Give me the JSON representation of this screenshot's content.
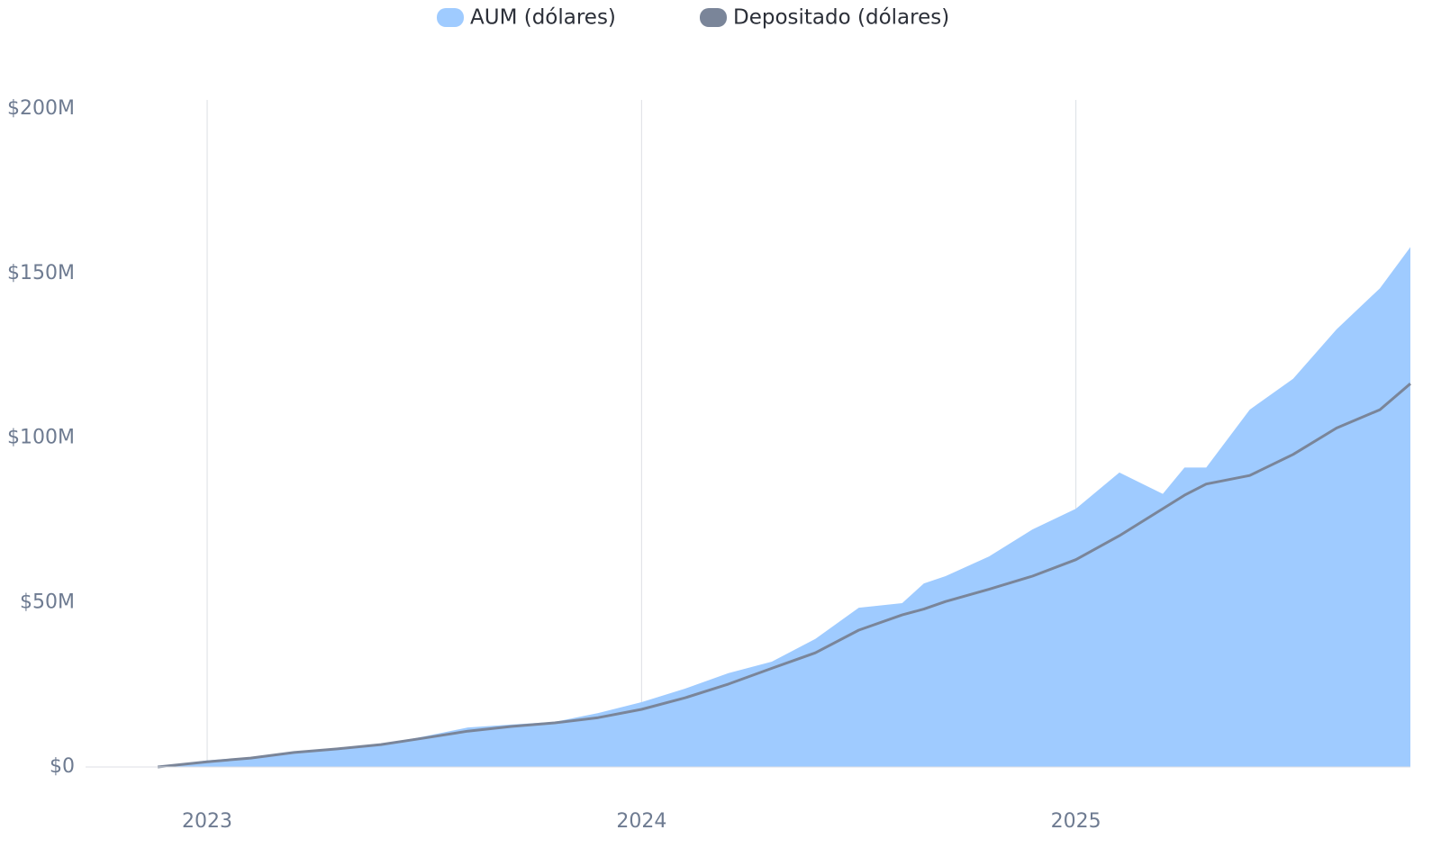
{
  "chart_data": {
    "type": "area",
    "x": [
      2022.886,
      2023.0,
      2023.1,
      2023.2,
      2023.3,
      2023.4,
      2023.5,
      2023.6,
      2023.7,
      2023.8,
      2023.9,
      2024.0,
      2024.1,
      2024.2,
      2024.3,
      2024.4,
      2024.5,
      2024.6,
      2024.65,
      2024.7,
      2024.8,
      2024.9,
      2025.0,
      2025.1,
      2025.2,
      2025.25,
      2025.3,
      2025.4,
      2025.5,
      2025.6,
      2025.7,
      2025.77
    ],
    "series": [
      {
        "name": "AUM (dólares)",
        "color": "#9fcbff",
        "fill": true,
        "values": [
          0,
          2000000,
          3000000,
          4400000,
          5200000,
          6800000,
          9300000,
          12000000,
          12900000,
          13700000,
          16400000,
          19700000,
          23800000,
          28500000,
          32000000,
          38900000,
          48400000,
          49800000,
          55800000,
          58000000,
          64000000,
          72200000,
          78500000,
          89500000,
          83000000,
          91000000,
          91000000,
          108600000,
          118000000,
          133000000,
          145500000,
          158000000
        ]
      },
      {
        "name": "Depositado (dólares)",
        "color": "#7a8599",
        "fill": false,
        "values": [
          0,
          1600000,
          2700000,
          4400000,
          5500000,
          6800000,
          8800000,
          10900000,
          12300000,
          13400000,
          15000000,
          17500000,
          21000000,
          25200000,
          30000000,
          34700000,
          41600000,
          46200000,
          48000000,
          50300000,
          54000000,
          58000000,
          63000000,
          70300000,
          78500000,
          82600000,
          86000000,
          88600000,
          95000000,
          103000000,
          108600000,
          116500000
        ]
      }
    ],
    "xlim": [
      2022.72,
      2025.77
    ],
    "xticks": [
      2023,
      2024,
      2025
    ],
    "ylim": [
      0,
      200000000
    ],
    "yticks": [
      {
        "value": 0,
        "label": "$0"
      },
      {
        "value": 50000000,
        "label": "$50M"
      },
      {
        "value": 100000000,
        "label": "$100M"
      },
      {
        "value": 150000000,
        "label": "$150M"
      },
      {
        "value": 200000000,
        "label": "$200M"
      }
    ],
    "grid": "x",
    "legend": "top"
  }
}
